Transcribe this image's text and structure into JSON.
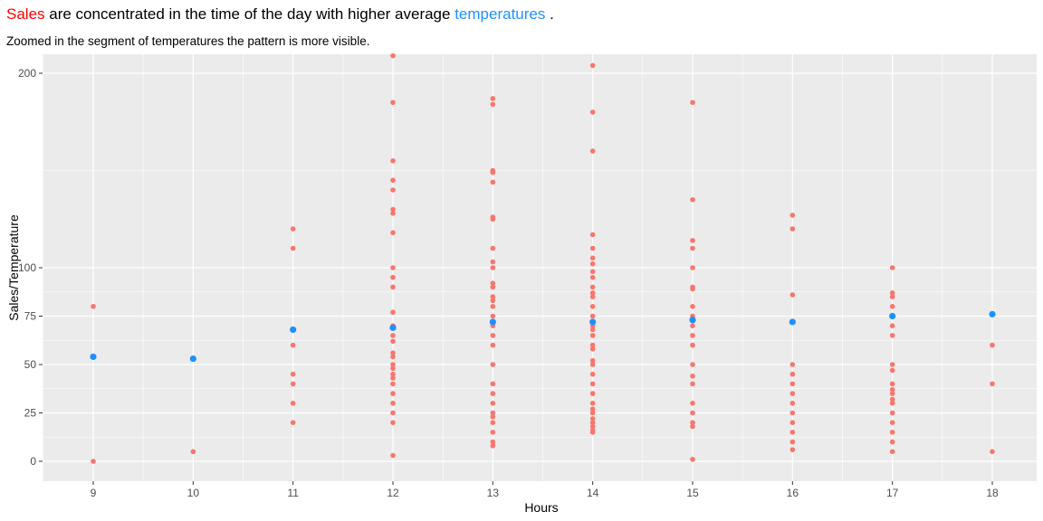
{
  "title": {
    "part1": "Sales",
    "part2": " are concentrated in the time of the day with higher average ",
    "part3": "temperatures",
    "part4": " .",
    "color_sales": "#ff0000",
    "color_temp": "#1e90ff"
  },
  "subtitle": "Zoomed in the segment of temperatures the pattern is more visible.",
  "chart_data": {
    "type": "scatter",
    "xlabel": "Hours",
    "ylabel": "Sales/Temperature",
    "x_ticks": [
      9,
      10,
      11,
      12,
      13,
      14,
      15,
      16,
      17,
      18
    ],
    "y_ticks": [
      0,
      25,
      50,
      75,
      100,
      200
    ],
    "xlim": [
      8.5,
      18.5
    ],
    "ylim": [
      -10,
      210
    ],
    "y_scale": "piecewise: linear 0-100 with compressed segment 100-200",
    "background": "#ebebeb",
    "grid": true,
    "series": [
      {
        "color": "#f8766d",
        "points": [
          [
            9,
            80
          ],
          [
            9,
            0
          ],
          [
            10,
            5
          ],
          [
            11,
            120
          ],
          [
            11,
            110
          ],
          [
            11,
            60
          ],
          [
            11,
            45
          ],
          [
            11,
            40
          ],
          [
            11,
            30
          ],
          [
            11,
            20
          ],
          [
            12,
            209
          ],
          [
            12,
            185
          ],
          [
            12,
            155
          ],
          [
            12,
            145
          ],
          [
            12,
            140
          ],
          [
            12,
            130
          ],
          [
            12,
            128
          ],
          [
            12,
            118
          ],
          [
            12,
            100
          ],
          [
            12,
            95
          ],
          [
            12,
            90
          ],
          [
            12,
            77
          ],
          [
            12,
            70
          ],
          [
            12,
            65
          ],
          [
            12,
            62
          ],
          [
            12,
            56
          ],
          [
            12,
            54
          ],
          [
            12,
            50
          ],
          [
            12,
            48
          ],
          [
            12,
            45
          ],
          [
            12,
            43
          ],
          [
            12,
            40
          ],
          [
            12,
            35
          ],
          [
            12,
            30
          ],
          [
            12,
            25
          ],
          [
            12,
            20
          ],
          [
            12,
            3
          ],
          [
            13,
            187
          ],
          [
            13,
            184
          ],
          [
            13,
            150
          ],
          [
            13,
            149
          ],
          [
            13,
            144
          ],
          [
            13,
            126
          ],
          [
            13,
            125
          ],
          [
            13,
            110
          ],
          [
            13,
            103
          ],
          [
            13,
            100
          ],
          [
            13,
            92
          ],
          [
            13,
            90
          ],
          [
            13,
            85
          ],
          [
            13,
            83
          ],
          [
            13,
            80
          ],
          [
            13,
            75
          ],
          [
            13,
            70
          ],
          [
            13,
            65
          ],
          [
            13,
            60
          ],
          [
            13,
            50
          ],
          [
            13,
            40
          ],
          [
            13,
            35
          ],
          [
            13,
            30
          ],
          [
            13,
            25
          ],
          [
            13,
            23
          ],
          [
            13,
            20
          ],
          [
            13,
            15
          ],
          [
            13,
            10
          ],
          [
            13,
            8
          ],
          [
            14,
            204
          ],
          [
            14,
            180
          ],
          [
            14,
            160
          ],
          [
            14,
            117
          ],
          [
            14,
            110
          ],
          [
            14,
            105
          ],
          [
            14,
            102
          ],
          [
            14,
            98
          ],
          [
            14,
            95
          ],
          [
            14,
            90
          ],
          [
            14,
            87
          ],
          [
            14,
            85
          ],
          [
            14,
            80
          ],
          [
            14,
            75
          ],
          [
            14,
            72
          ],
          [
            14,
            70
          ],
          [
            14,
            68
          ],
          [
            14,
            65
          ],
          [
            14,
            60
          ],
          [
            14,
            58
          ],
          [
            14,
            52
          ],
          [
            14,
            50
          ],
          [
            14,
            45
          ],
          [
            14,
            40
          ],
          [
            14,
            35
          ],
          [
            14,
            30
          ],
          [
            14,
            27
          ],
          [
            14,
            25
          ],
          [
            14,
            22
          ],
          [
            14,
            20
          ],
          [
            14,
            18
          ],
          [
            14,
            16
          ],
          [
            14,
            15
          ],
          [
            15,
            185
          ],
          [
            15,
            135
          ],
          [
            15,
            114
          ],
          [
            15,
            110
          ],
          [
            15,
            100
          ],
          [
            15,
            90
          ],
          [
            15,
            89
          ],
          [
            15,
            80
          ],
          [
            15,
            75
          ],
          [
            15,
            70
          ],
          [
            15,
            65
          ],
          [
            15,
            60
          ],
          [
            15,
            50
          ],
          [
            15,
            44
          ],
          [
            15,
            40
          ],
          [
            15,
            30
          ],
          [
            15,
            25
          ],
          [
            15,
            20
          ],
          [
            15,
            18
          ],
          [
            15,
            1
          ],
          [
            16,
            127
          ],
          [
            16,
            120
          ],
          [
            16,
            86
          ],
          [
            16,
            50
          ],
          [
            16,
            45
          ],
          [
            16,
            40
          ],
          [
            16,
            35
          ],
          [
            16,
            30
          ],
          [
            16,
            25
          ],
          [
            16,
            20
          ],
          [
            16,
            15
          ],
          [
            16,
            10
          ],
          [
            16,
            6
          ],
          [
            17,
            100
          ],
          [
            17,
            87
          ],
          [
            17,
            85
          ],
          [
            17,
            80
          ],
          [
            17,
            70
          ],
          [
            17,
            65
          ],
          [
            17,
            50
          ],
          [
            17,
            47
          ],
          [
            17,
            40
          ],
          [
            17,
            37
          ],
          [
            17,
            35
          ],
          [
            17,
            32
          ],
          [
            17,
            30
          ],
          [
            17,
            25
          ],
          [
            17,
            20
          ],
          [
            17,
            15
          ],
          [
            17,
            10
          ],
          [
            17,
            5
          ],
          [
            18,
            60
          ],
          [
            18,
            40
          ],
          [
            18,
            5
          ]
        ]
      },
      {
        "color": "#1e90ff",
        "points": [
          [
            9,
            54
          ],
          [
            10,
            53
          ],
          [
            11,
            68
          ],
          [
            12,
            69
          ],
          [
            13,
            72
          ],
          [
            14,
            72
          ],
          [
            15,
            73
          ],
          [
            16,
            72
          ],
          [
            17,
            75
          ],
          [
            18,
            76
          ]
        ]
      }
    ]
  }
}
